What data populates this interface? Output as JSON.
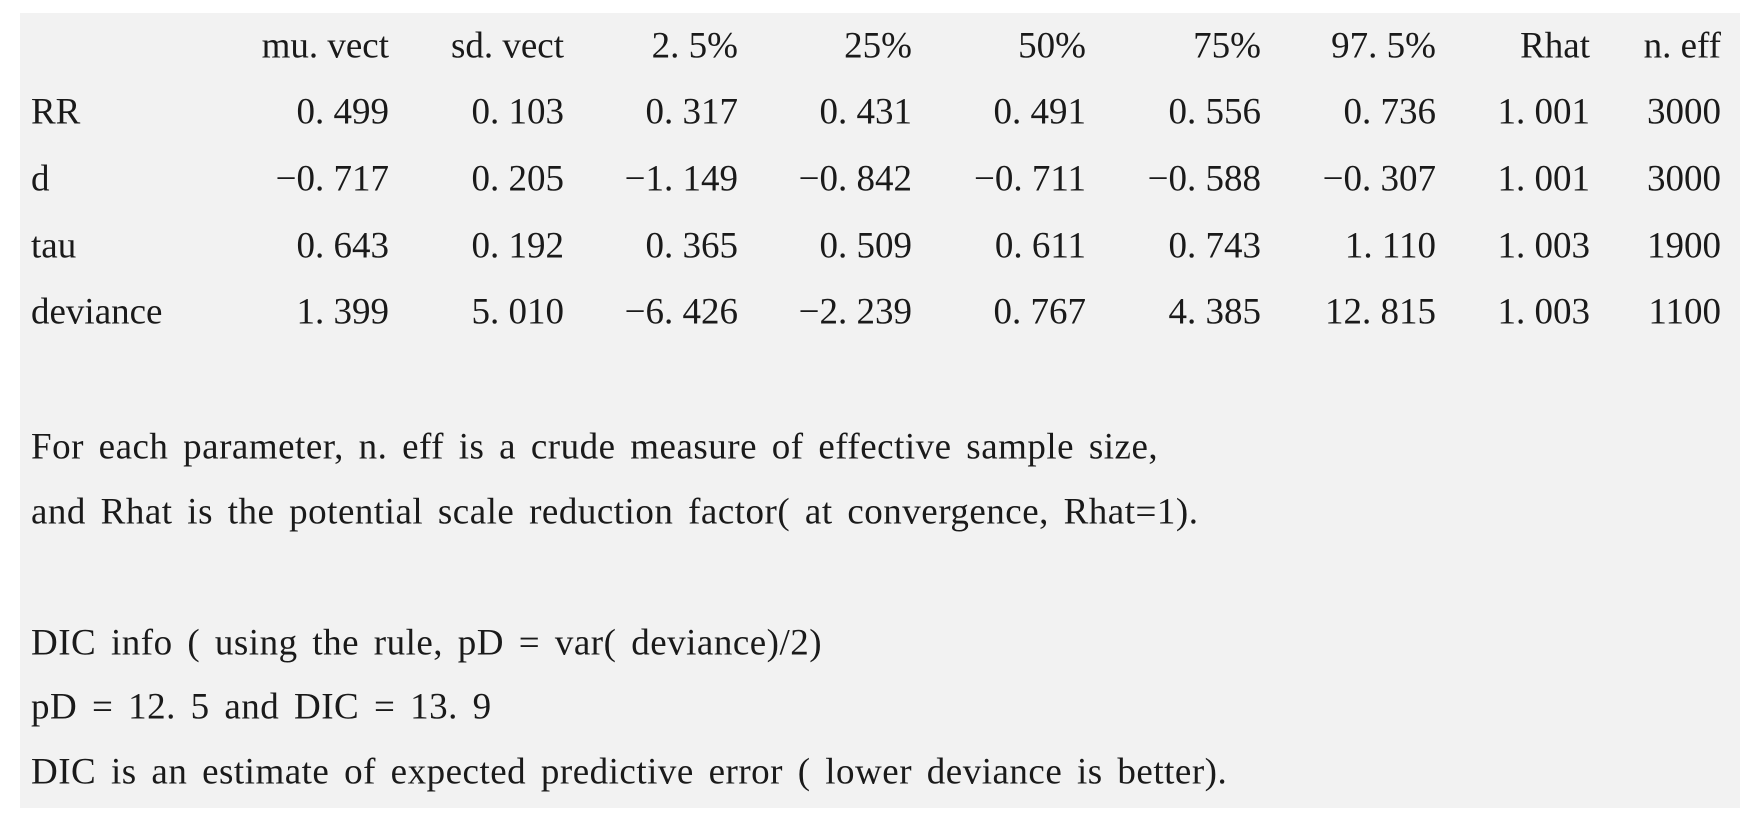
{
  "table": {
    "header": [
      "mu. vect",
      "sd. vect",
      "2. 5%",
      "25%",
      "50%",
      "75%",
      "97. 5%",
      "Rhat",
      "n. eff"
    ],
    "rows": [
      [
        "RR",
        "0. 499",
        "0. 103",
        "0. 317",
        "0. 431",
        "0. 491",
        "0. 556",
        "0. 736",
        "1. 001",
        "3000"
      ],
      [
        "d",
        "−0. 717",
        "0. 205",
        "−1. 149",
        "−0. 842",
        "−0. 711",
        "−0. 588",
        "−0. 307",
        "1. 001",
        "3000"
      ],
      [
        "tau",
        "0. 643",
        "0. 192",
        "0. 365",
        "0. 509",
        "0. 611",
        "0. 743",
        "1. 110",
        "1. 003",
        "1900"
      ],
      [
        "deviance",
        "1. 399",
        "5. 010",
        "−6. 426",
        "−2. 239",
        "0. 767",
        "4. 385",
        "12. 815",
        "1. 003",
        "1100"
      ]
    ]
  },
  "notes": [
    "For each parameter, n. eff is a crude measure of effective sample size,",
    "and Rhat is the potential scale reduction factor( at convergence, Rhat=1).",
    "DIC info ( using the rule, pD = var( deviance)/2)",
    "pD = 12. 5 and DIC = 13. 9",
    "DIC is an estimate of expected predictive error ( lower deviance is better)."
  ]
}
